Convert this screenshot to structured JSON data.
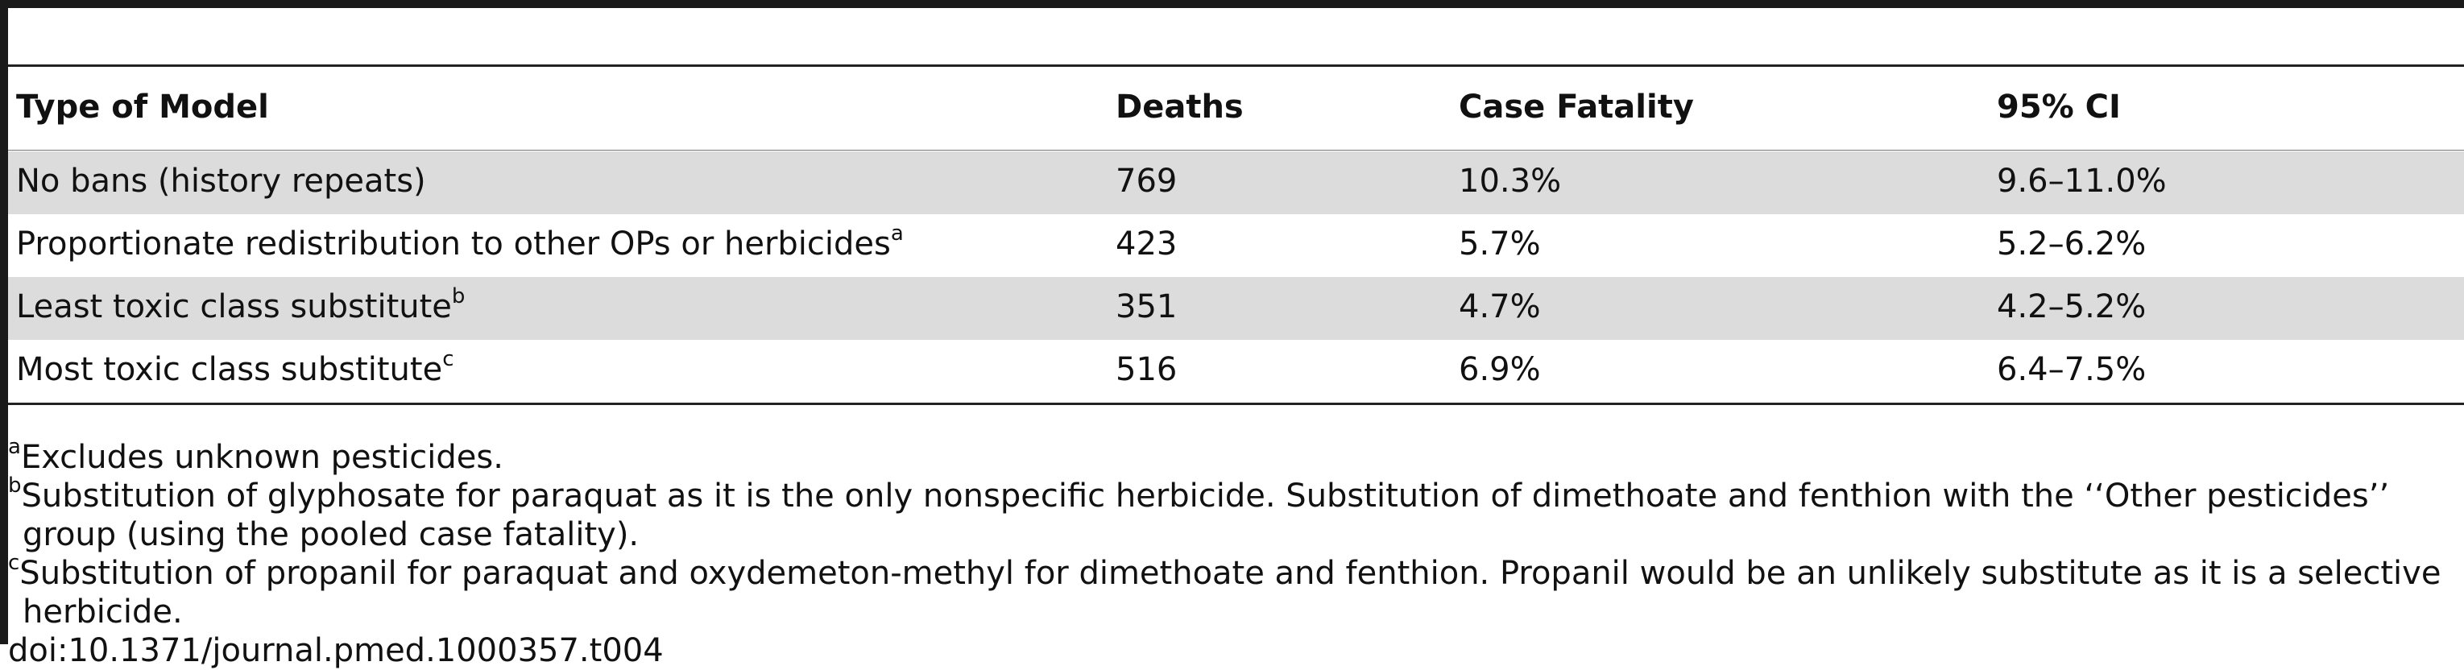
{
  "table": {
    "headers": [
      "Type of Model",
      "Deaths",
      "Case Fatality",
      "95% CI"
    ],
    "rows": [
      {
        "model": "No bans (history repeats)",
        "note": "",
        "deaths": "769",
        "case_fatality": "10.3%",
        "ci": "9.6–11.0%"
      },
      {
        "model": "Proportionate redistribution to other OPs or herbicides",
        "note": "a",
        "deaths": "423",
        "case_fatality": "5.7%",
        "ci": "5.2–6.2%"
      },
      {
        "model": "Least toxic class substitute",
        "note": "b",
        "deaths": "351",
        "case_fatality": "4.7%",
        "ci": "4.2–5.2%"
      },
      {
        "model": "Most toxic class substitute",
        "note": "c",
        "deaths": "516",
        "case_fatality": "6.9%",
        "ci": "6.4–7.5%"
      }
    ]
  },
  "footnotes": [
    {
      "mark": "a",
      "text": "Excludes unknown pesticides."
    },
    {
      "mark": "b",
      "text": "Substitution of glyphosate for paraquat as it is the only nonspecific herbicide. Substitution of dimethoate and fenthion with the ‘‘Other pesticides’’ group (using the pooled case fatality)."
    },
    {
      "mark": "c",
      "text": "Substitution of propanil for paraquat and oxydemeton-methyl for dimethoate and fenthion. Propanil would be an unlikely substitute as it is a selective herbicide."
    }
  ],
  "doi": "doi:10.1371/journal.pmed.1000357.t004"
}
